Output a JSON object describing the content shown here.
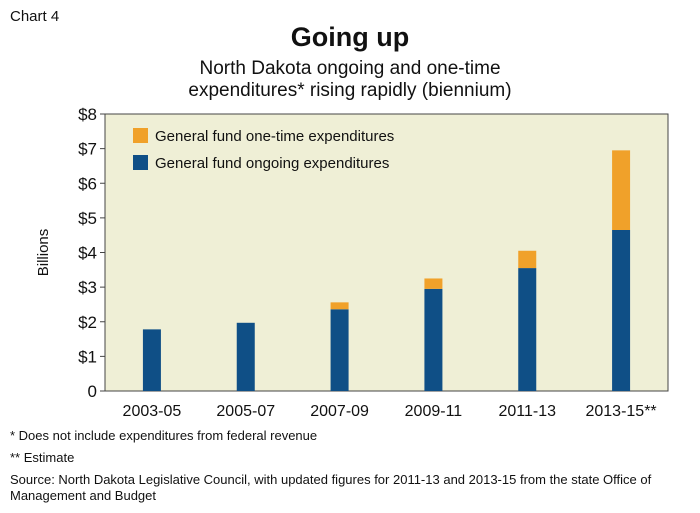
{
  "chart_label": "Chart 4",
  "title": "Going up",
  "subtitle_lines": [
    "North Dakota ongoing and one-time",
    "expenditures* rising rapidly (biennium)"
  ],
  "footnotes": [
    "* Does not include expenditures from federal revenue",
    "** Estimate"
  ],
  "source": "Source: North Dakota Legislative Council, with updated figures for 2011-13 and 2013-15 from the state Office of Management and Budget",
  "colors": {
    "plot_background": "#efefd6",
    "ongoing": "#0f4f86",
    "one_time": "#f0a12a"
  },
  "chart_data": {
    "type": "bar",
    "stacked": true,
    "categories": [
      "2003-05",
      "2005-07",
      "2007-09",
      "2009-11",
      "2011-13",
      "2013-15**"
    ],
    "series": [
      {
        "name": "General fund ongoing expenditures",
        "color": "#0f4f86",
        "values": [
          1.78,
          1.97,
          2.36,
          2.95,
          3.55,
          4.65
        ]
      },
      {
        "name": "General fund one-time expenditures",
        "color": "#f0a12a",
        "values": [
          0,
          0,
          0.2,
          0.3,
          0.5,
          2.3
        ]
      }
    ],
    "ylabel": "Billions",
    "ylim": [
      0,
      8
    ],
    "yticks": [
      0,
      1,
      2,
      3,
      4,
      5,
      6,
      7,
      8
    ],
    "ytick_labels": [
      "0",
      "$1",
      "$2",
      "$3",
      "$4",
      "$5",
      "$6",
      "$7",
      "$8"
    ],
    "legend": [
      {
        "label": "General fund one-time expenditures",
        "color": "#f0a12a"
      },
      {
        "label": "General fund ongoing expenditures",
        "color": "#0f4f86"
      }
    ],
    "legend_position": "top-left",
    "grid": false
  }
}
